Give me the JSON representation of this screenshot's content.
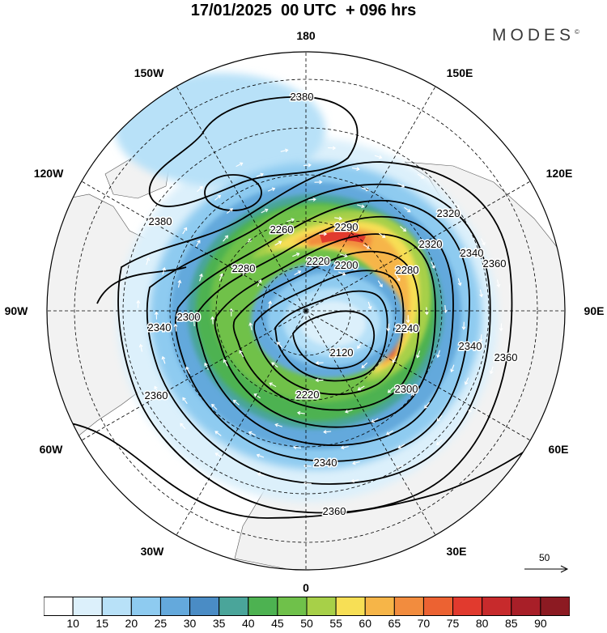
{
  "header": {
    "title": "17/01/2025  00 UTC  + 096 hrs",
    "brand": "MODES",
    "brand_mark": "©"
  },
  "map": {
    "projection": "north polar stereographic",
    "longitude_labels": [
      "180",
      "150E",
      "120E",
      "90E",
      "60E",
      "30E",
      "0",
      "30W",
      "60W",
      "90W",
      "120W",
      "150W"
    ],
    "contour_labels": [
      "2380",
      "2380",
      "2360",
      "2360",
      "2360",
      "2360",
      "2340",
      "2340",
      "2340",
      "2340",
      "2320",
      "2320",
      "2300",
      "2300",
      "2290",
      "2280",
      "2280",
      "2260",
      "2240",
      "2220",
      "2220",
      "2200",
      "2120"
    ],
    "reference_vector_label": "50"
  },
  "colorbar": {
    "colors": [
      "#ffffff",
      "#dcf0fb",
      "#b8e1f8",
      "#8ecbf0",
      "#64a9dc",
      "#4a8cc5",
      "#4aa59a",
      "#4db251",
      "#6fc14a",
      "#a7d048",
      "#f7df55",
      "#f6b548",
      "#f28c3e",
      "#ec6232",
      "#e13a2e",
      "#c72a2c",
      "#a81f28",
      "#8c1a22"
    ],
    "labels": [
      "10",
      "15",
      "20",
      "25",
      "30",
      "35",
      "40",
      "45",
      "50",
      "55",
      "60",
      "65",
      "70",
      "75",
      "80",
      "85",
      "90"
    ]
  },
  "colors": {
    "land": "#f2f2f2",
    "contour": "#000000",
    "arrows": "#ffffff"
  }
}
